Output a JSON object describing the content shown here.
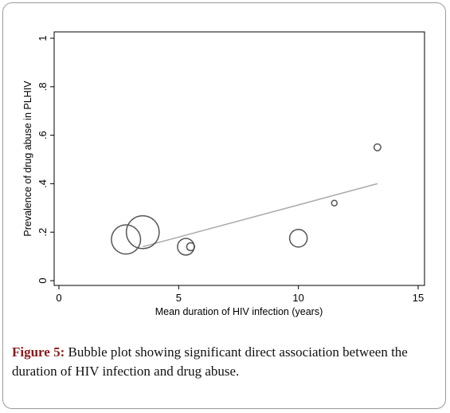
{
  "chart_data": {
    "type": "scatter",
    "variant": "bubble",
    "title": "",
    "xlabel": "Mean duration of HIV infection (years)",
    "ylabel": "Prevalence of drug abuse in PLHIV",
    "xlim": [
      0,
      15
    ],
    "ylim": [
      0,
      1
    ],
    "x_ticks": [
      "0",
      "5",
      "10",
      "15"
    ],
    "y_ticks": [
      "0",
      ".2",
      ".4",
      ".6",
      ".8",
      "1"
    ],
    "grid": false,
    "legend": "none",
    "points": [
      {
        "x": 2.8,
        "y": 0.17,
        "size": 5.5
      },
      {
        "x": 3.5,
        "y": 0.2,
        "size": 7.0
      },
      {
        "x": 5.3,
        "y": 0.14,
        "size": 1.8
      },
      {
        "x": 5.5,
        "y": 0.14,
        "size": 0.4
      },
      {
        "x": 10.0,
        "y": 0.175,
        "size": 2.0
      },
      {
        "x": 11.5,
        "y": 0.32,
        "size": 0.2
      },
      {
        "x": 13.3,
        "y": 0.55,
        "size": 0.3
      }
    ],
    "fit_line": {
      "x": [
        3.5,
        13.3
      ],
      "y": [
        0.14,
        0.4
      ]
    },
    "colors": {
      "bubble": "#555555",
      "fit": "#aaaaaa",
      "axis": "#000000"
    }
  },
  "caption": {
    "label": "Figure 5:",
    "text": " Bubble plot showing significant direct association between the duration of HIV infection and drug abuse."
  }
}
